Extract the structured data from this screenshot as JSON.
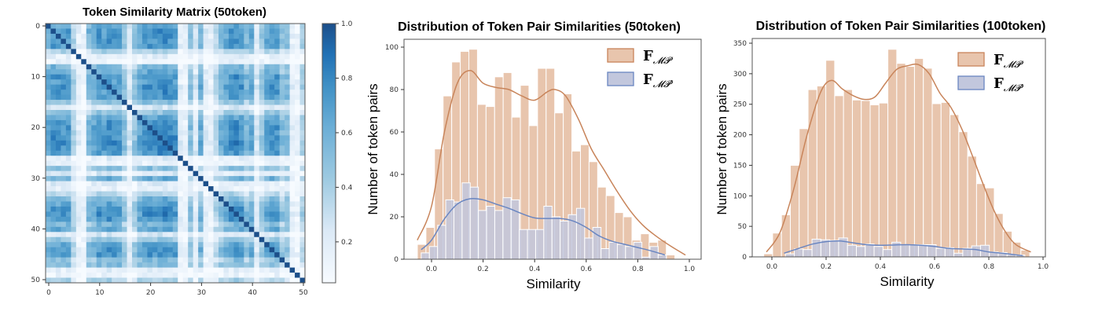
{
  "colors": {
    "mp_fill": "#e8c5ad",
    "mp_line": "#c8845a",
    "mpp_fill": "#c2c7dd",
    "mpp_line": "#6a86c1",
    "frame": "#555555",
    "heat_low": "#f7fbff",
    "heat_high": "#08306b"
  },
  "legend": {
    "mp_main": "F",
    "mp_sub": "𝓜𝓟",
    "mpp_main": "F",
    "mpp_sub": "𝓜𝓟′"
  },
  "chart_data": [
    {
      "type": "heatmap",
      "title": "Token Similarity Matrix (50token)",
      "xlabel": "",
      "ylabel": "",
      "size": 51,
      "x_ticks": [
        "0",
        "10",
        "20",
        "30",
        "40",
        "50"
      ],
      "y_ticks": [
        "0",
        "10",
        "20",
        "30",
        "40",
        "50"
      ],
      "colorbar": {
        "min": 0.05,
        "max": 1.0,
        "ticks": [
          "0.2",
          "0.4",
          "0.6",
          "0.8",
          "1.0"
        ],
        "cmap": "Blues"
      },
      "token_strength": [
        0.72,
        0.82,
        0.8,
        0.78,
        0.8,
        0.45,
        0.2,
        0.15,
        0.62,
        0.7,
        0.82,
        0.75,
        0.85,
        0.8,
        0.78,
        0.55,
        0.25,
        0.5,
        0.7,
        0.8,
        0.85,
        0.82,
        0.86,
        0.88,
        0.84,
        0.8,
        0.2,
        0.18,
        0.55,
        0.25,
        0.68,
        0.22,
        0.18,
        0.4,
        0.62,
        0.72,
        0.82,
        0.84,
        0.8,
        0.6,
        0.7,
        0.25,
        0.5,
        0.72,
        0.78,
        0.8,
        0.55,
        0.6,
        0.2,
        0.15,
        0.45
      ],
      "note": "Symmetric matrix; diagonal = 1.0; off-diagonal ≈ token_strength[i]*token_strength[j] + noise"
    },
    {
      "type": "bar",
      "subtype": "histogram_with_kde",
      "title": "Distribution of Token Pair Similarities (50token)",
      "xlabel": "Similarity",
      "ylabel": "Number of token pairs",
      "xlim": [
        -0.09,
        1.06
      ],
      "ylim": [
        0,
        104
      ],
      "x_ticks": [
        "0.0",
        "0.2",
        "0.4",
        "0.6",
        "0.8",
        "1.0"
      ],
      "y_ticks": [
        "0",
        "20",
        "40",
        "60",
        "80",
        "100"
      ],
      "series": [
        {
          "name": "F_MP",
          "bin_start": -0.055,
          "bin_width": 0.0333,
          "values": [
            7,
            15,
            52,
            77,
            93,
            98,
            99,
            73,
            72,
            86,
            88,
            67,
            82,
            63,
            90,
            90,
            69,
            78,
            51,
            54,
            46,
            34,
            30,
            22,
            20,
            9,
            12,
            8,
            9,
            2
          ],
          "kde": [
            [
              -0.055,
              9
            ],
            [
              0.0,
              25
            ],
            [
              0.05,
              60
            ],
            [
              0.1,
              83
            ],
            [
              0.15,
              89
            ],
            [
              0.2,
              83
            ],
            [
              0.25,
              81
            ],
            [
              0.3,
              80
            ],
            [
              0.35,
              77
            ],
            [
              0.4,
              75
            ],
            [
              0.45,
              79
            ],
            [
              0.48,
              80
            ],
            [
              0.52,
              77
            ],
            [
              0.57,
              66
            ],
            [
              0.62,
              52
            ],
            [
              0.67,
              42
            ],
            [
              0.72,
              32
            ],
            [
              0.77,
              23
            ],
            [
              0.82,
              16
            ],
            [
              0.87,
              11
            ],
            [
              0.93,
              6
            ],
            [
              0.985,
              2
            ]
          ]
        },
        {
          "name": "F_MP'",
          "bin_start": -0.04,
          "bin_width": 0.0317,
          "values": [
            3,
            6,
            16,
            28,
            27,
            36,
            34,
            23,
            25,
            23,
            29,
            28,
            14,
            14,
            14,
            25,
            20,
            18,
            21,
            24,
            10,
            15,
            5,
            8,
            7,
            6,
            8,
            1,
            6,
            2
          ],
          "kde": [
            [
              -0.04,
              4.5
            ],
            [
              0.0,
              9
            ],
            [
              0.05,
              19
            ],
            [
              0.1,
              26
            ],
            [
              0.15,
              28.5
            ],
            [
              0.2,
              28
            ],
            [
              0.25,
              26
            ],
            [
              0.3,
              24
            ],
            [
              0.35,
              21.5
            ],
            [
              0.4,
              19.5
            ],
            [
              0.45,
              19.2
            ],
            [
              0.5,
              19.2
            ],
            [
              0.55,
              18
            ],
            [
              0.6,
              15
            ],
            [
              0.65,
              11
            ],
            [
              0.7,
              8.5
            ],
            [
              0.75,
              7
            ],
            [
              0.8,
              5.5
            ],
            [
              0.85,
              4
            ],
            [
              0.905,
              2
            ]
          ]
        }
      ],
      "legend_position": "upper right"
    },
    {
      "type": "bar",
      "subtype": "histogram_with_kde",
      "title": "Distribution of Token Pair Similarities (100token)",
      "xlabel": "Similarity",
      "ylabel": "Number of token pairs",
      "xlim": [
        -0.07,
        1.01
      ],
      "ylim": [
        0,
        356
      ],
      "x_ticks": [
        "0.0",
        "0.2",
        "0.4",
        "0.6",
        "0.8",
        "1.0"
      ],
      "y_ticks": [
        "0",
        "50",
        "100",
        "150",
        "200",
        "250",
        "300",
        "350"
      ],
      "series": [
        {
          "name": "F_MP",
          "bin_start": -0.03,
          "bin_width": 0.0327,
          "values": [
            5,
            39,
            69,
            150,
            210,
            274,
            280,
            322,
            264,
            274,
            257,
            256,
            249,
            252,
            340,
            317,
            312,
            325,
            309,
            251,
            253,
            233,
            205,
            165,
            120,
            113,
            71,
            42,
            24,
            11
          ],
          "kde": [
            [
              -0.02,
              8
            ],
            [
              0.03,
              40
            ],
            [
              0.08,
              110
            ],
            [
              0.13,
              200
            ],
            [
              0.18,
              270
            ],
            [
              0.22,
              289
            ],
            [
              0.26,
              275
            ],
            [
              0.3,
              264
            ],
            [
              0.34,
              258
            ],
            [
              0.38,
              262
            ],
            [
              0.42,
              285
            ],
            [
              0.46,
              307
            ],
            [
              0.5,
              313
            ],
            [
              0.54,
              315
            ],
            [
              0.58,
              300
            ],
            [
              0.62,
              268
            ],
            [
              0.66,
              245
            ],
            [
              0.7,
              210
            ],
            [
              0.74,
              165
            ],
            [
              0.78,
              118
            ],
            [
              0.82,
              75
            ],
            [
              0.86,
              42
            ],
            [
              0.9,
              20
            ],
            [
              0.955,
              8
            ]
          ]
        },
        {
          "name": "F_MP'",
          "bin_start": 0.05,
          "bin_width": 0.0327,
          "values": [
            5,
            13,
            12,
            29,
            28,
            27,
            31,
            19,
            17,
            21,
            17,
            12,
            24,
            20,
            20,
            20,
            20,
            14,
            15,
            6,
            14,
            18,
            19,
            8,
            7,
            4,
            3
          ],
          "kde": [
            [
              0.045,
              6
            ],
            [
              0.1,
              14
            ],
            [
              0.15,
              21
            ],
            [
              0.2,
              25
            ],
            [
              0.25,
              26
            ],
            [
              0.3,
              23
            ],
            [
              0.35,
              20
            ],
            [
              0.4,
              19
            ],
            [
              0.45,
              19.5
            ],
            [
              0.5,
              20
            ],
            [
              0.55,
              19
            ],
            [
              0.6,
              17
            ],
            [
              0.65,
              14
            ],
            [
              0.7,
              13
            ],
            [
              0.75,
              12
            ],
            [
              0.8,
              8
            ],
            [
              0.85,
              6
            ],
            [
              0.925,
              2
            ]
          ]
        }
      ],
      "legend_position": "upper right"
    }
  ]
}
